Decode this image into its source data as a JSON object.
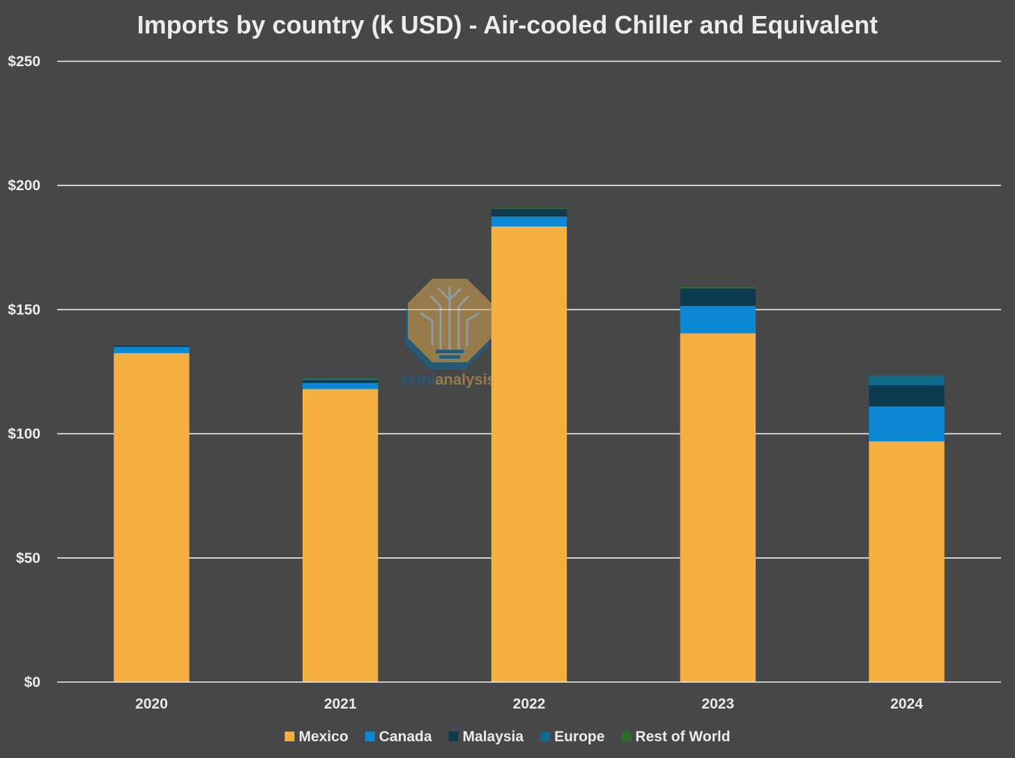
{
  "chart_data": {
    "type": "bar",
    "stacked": true,
    "title": "Imports by country (k USD) - Air-cooled Chiller and Equivalent",
    "xlabel": "",
    "ylabel": "",
    "categories": [
      "2020",
      "2021",
      "2022",
      "2023",
      "2024"
    ],
    "ylim": [
      0,
      250
    ],
    "yticks": [
      0,
      50,
      100,
      150,
      200,
      250
    ],
    "ytick_labels": [
      "$0",
      "$50",
      "$100",
      "$150",
      "$200",
      "$250"
    ],
    "grid": true,
    "legend_position": "bottom",
    "series": [
      {
        "name": "Mexico",
        "color": "#f5b041",
        "values": [
          132.5,
          118,
          183.5,
          140.5,
          97
        ]
      },
      {
        "name": "Canada",
        "color": "#0b87d4",
        "values": [
          2.5,
          2.5,
          4,
          11,
          14
        ]
      },
      {
        "name": "Malaysia",
        "color": "#0e3a50",
        "values": [
          0.5,
          1,
          3,
          7,
          8.5
        ]
      },
      {
        "name": "Europe",
        "color": "#106a8c",
        "values": [
          0,
          0.5,
          0.3,
          0.3,
          4
        ]
      },
      {
        "name": "Rest of World",
        "color": "#2f6c2a",
        "values": [
          0,
          0.5,
          0.2,
          0.3,
          0
        ]
      }
    ]
  },
  "watermark": {
    "part1": "semi",
    "part2": "analysis",
    "icon": "tree-circuit-icon"
  }
}
